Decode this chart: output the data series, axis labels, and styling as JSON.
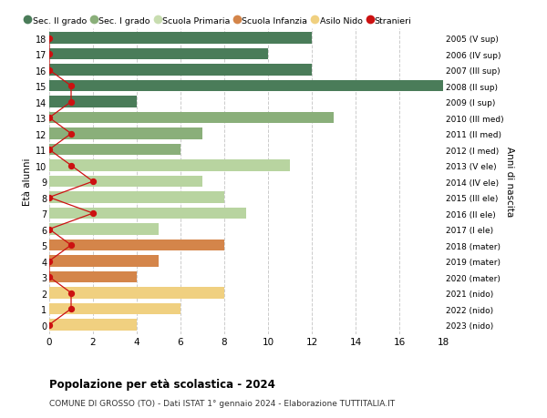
{
  "ages": [
    18,
    17,
    16,
    15,
    14,
    13,
    12,
    11,
    10,
    9,
    8,
    7,
    6,
    5,
    4,
    3,
    2,
    1,
    0
  ],
  "bar_values": [
    12,
    10,
    12,
    19,
    4,
    13,
    7,
    6,
    11,
    7,
    8,
    9,
    5,
    8,
    5,
    4,
    8,
    6,
    4
  ],
  "bar_colors": [
    "#4a7c59",
    "#4a7c59",
    "#4a7c59",
    "#4a7c59",
    "#4a7c59",
    "#8aaf7a",
    "#8aaf7a",
    "#8aaf7a",
    "#b8d4a0",
    "#b8d4a0",
    "#b8d4a0",
    "#b8d4a0",
    "#b8d4a0",
    "#d4854a",
    "#d4854a",
    "#d4854a",
    "#f0d080",
    "#f0d080",
    "#f0d080"
  ],
  "stranieri_values": [
    0,
    0,
    0,
    1,
    1,
    0,
    1,
    0,
    1,
    2,
    0,
    2,
    0,
    1,
    0,
    0,
    1,
    1,
    0
  ],
  "right_labels": [
    "2005 (V sup)",
    "2006 (IV sup)",
    "2007 (III sup)",
    "2008 (II sup)",
    "2009 (I sup)",
    "2010 (III med)",
    "2011 (II med)",
    "2012 (I med)",
    "2013 (V ele)",
    "2014 (IV ele)",
    "2015 (III ele)",
    "2016 (II ele)",
    "2017 (I ele)",
    "2018 (mater)",
    "2019 (mater)",
    "2020 (mater)",
    "2021 (nido)",
    "2022 (nido)",
    "2023 (nido)"
  ],
  "legend_labels": [
    "Sec. II grado",
    "Sec. I grado",
    "Scuola Primaria",
    "Scuola Infanzia",
    "Asilo Nido",
    "Stranieri"
  ],
  "legend_colors": [
    "#4a7c59",
    "#8aaf7a",
    "#c8ddb0",
    "#d4854a",
    "#f0d080",
    "#cc1111"
  ],
  "title": "Popolazione per età scolastica - 2024",
  "subtitle": "COMUNE DI GROSSO (TO) - Dati ISTAT 1° gennaio 2024 - Elaborazione TUTTITALIA.IT",
  "ylabel_left": "Età alunni",
  "ylabel_right": "Anni di nascita",
  "xlim": [
    0,
    18
  ],
  "background_color": "#ffffff",
  "grid_color": "#cccccc",
  "stranieri_color": "#cc1111"
}
